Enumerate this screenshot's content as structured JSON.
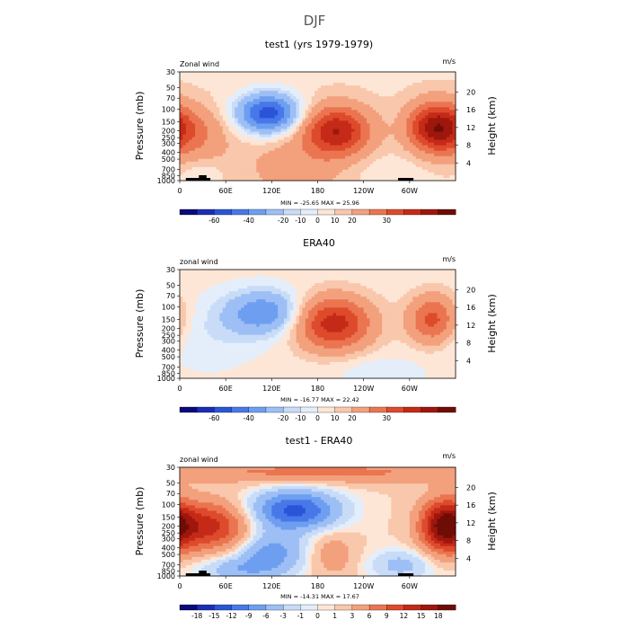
{
  "figure_title": "DJF",
  "panels": [
    {
      "title": "test1 (yrs 1979-1979)",
      "left_label": "Zonal wind",
      "right_label": "m/s",
      "ylabel": "Pressure (mb)",
      "ylabel_right": "Height (km)",
      "minmax": "MIN = -25.65   MAX =  25.96",
      "colorbar_labels": [
        "-60",
        "-40",
        "-20",
        "-10",
        "0",
        "10",
        "20",
        "30"
      ],
      "colorbar_colors": [
        "#0a0a7a",
        "#1a2fb5",
        "#2a55d8",
        "#4878e8",
        "#6e9ef0",
        "#9dbff5",
        "#c8dcf8",
        "#e4eefb",
        "#fde6d6",
        "#f9c7ab",
        "#f3a07d",
        "#ea7550",
        "#dd4a2c",
        "#c42a17",
        "#9e160c",
        "#6e0d06"
      ],
      "colorbar_tick_positions": [
        0.125,
        0.25,
        0.375,
        0.4375,
        0.5,
        0.5625,
        0.625,
        0.75
      ]
    },
    {
      "title": "ERA40",
      "left_label": "zonal wind",
      "right_label": "m/s",
      "ylabel": "Pressure (mb)",
      "ylabel_right": "Height (km)",
      "minmax": "MIN = -16.77   MAX =  22.42",
      "colorbar_labels": [
        "-60",
        "-40",
        "-20",
        "-10",
        "0",
        "10",
        "20",
        "30"
      ],
      "colorbar_colors": [
        "#0a0a7a",
        "#1a2fb5",
        "#2a55d8",
        "#4878e8",
        "#6e9ef0",
        "#9dbff5",
        "#c8dcf8",
        "#e4eefb",
        "#fde6d6",
        "#f9c7ab",
        "#f3a07d",
        "#ea7550",
        "#dd4a2c",
        "#c42a17",
        "#9e160c",
        "#6e0d06"
      ],
      "colorbar_tick_positions": [
        0.125,
        0.25,
        0.375,
        0.4375,
        0.5,
        0.5625,
        0.625,
        0.75
      ]
    },
    {
      "title": "test1 - ERA40",
      "left_label": "zonal wind",
      "right_label": "m/s",
      "ylabel": "Pressure (mb)",
      "ylabel_right": "Height (km)",
      "minmax": "MIN = -14.31   MAX =  17.67",
      "colorbar_labels": [
        "-18",
        "-15",
        "-12",
        "-9",
        "-6",
        "-3",
        "-1",
        "0",
        "1",
        "3",
        "6",
        "9",
        "12",
        "15",
        "18"
      ],
      "colorbar_colors": [
        "#0a0a7a",
        "#1a2fb5",
        "#2a55d8",
        "#4878e8",
        "#6e9ef0",
        "#9dbff5",
        "#c8dcf8",
        "#e4eefb",
        "#fde6d6",
        "#f9c7ab",
        "#f3a07d",
        "#ea7550",
        "#dd4a2c",
        "#c42a17",
        "#9e160c",
        "#6e0d06"
      ],
      "colorbar_tick_positions": [
        0.0625,
        0.125,
        0.1875,
        0.25,
        0.3125,
        0.375,
        0.4375,
        0.5,
        0.5625,
        0.625,
        0.6875,
        0.75,
        0.8125,
        0.875,
        0.9375
      ]
    }
  ],
  "chart_data": [
    {
      "type": "heatmap",
      "title": "test1 (yrs 1979-1979)",
      "xlabel": "",
      "ylabel": "Pressure (mb)",
      "ylabel_right": "Height (km)",
      "x_ticks": [
        "0",
        "60E",
        "120E",
        "180",
        "120W",
        "60W"
      ],
      "x_tick_lon": [
        0,
        60,
        120,
        180,
        240,
        300
      ],
      "xlim": [
        0,
        360
      ],
      "y_ticks": [
        "30",
        "50",
        "70",
        "100",
        "150",
        "200",
        "250",
        "300",
        "400",
        "500",
        "700",
        "850",
        "1000"
      ],
      "y_tick_p": [
        30,
        50,
        70,
        100,
        150,
        200,
        250,
        300,
        400,
        500,
        700,
        850,
        1000
      ],
      "y_ticks_right": [
        "20",
        "16",
        "12",
        "8",
        "4"
      ],
      "y_ticks_right_km": [
        20,
        16,
        12,
        8,
        4
      ],
      "ylim": [
        1000,
        30
      ],
      "min": -25.65,
      "max": 25.96,
      "features": [
        {
          "lon": 115,
          "p": 115,
          "value": -25,
          "sx": 28,
          "sy": 0.45
        },
        {
          "lon": 205,
          "p": 200,
          "value": 22,
          "sx": 30,
          "sy": 0.55
        },
        {
          "lon": 335,
          "p": 180,
          "value": 26,
          "sx": 25,
          "sy": 0.55
        },
        {
          "lon": 20,
          "p": 220,
          "value": 8,
          "sx": 30,
          "sy": 0.6
        },
        {
          "lon": 155,
          "p": 600,
          "value": 5,
          "sx": 55,
          "sy": 0.8
        },
        {
          "lon": 260,
          "p": 700,
          "value": -2,
          "sx": 40,
          "sy": 0.4
        },
        {
          "lon": 30,
          "p": 850,
          "value": -3,
          "sx": 15,
          "sy": 0.3
        }
      ],
      "background": 2
    },
    {
      "type": "heatmap",
      "title": "ERA40",
      "xlabel": "",
      "ylabel": "Pressure (mb)",
      "ylabel_right": "Height (km)",
      "x_ticks": [
        "0",
        "60E",
        "120E",
        "180",
        "120W",
        "60W"
      ],
      "x_tick_lon": [
        0,
        60,
        120,
        180,
        240,
        300
      ],
      "xlim": [
        0,
        360
      ],
      "y_ticks": [
        "30",
        "50",
        "70",
        "100",
        "150",
        "200",
        "250",
        "300",
        "400",
        "500",
        "700",
        "850",
        "1000"
      ],
      "y_tick_p": [
        30,
        50,
        70,
        100,
        150,
        200,
        250,
        300,
        400,
        500,
        700,
        850,
        1000
      ],
      "y_ticks_right": [
        "20",
        "16",
        "12",
        "8",
        "4"
      ],
      "y_ticks_right_km": [
        20,
        16,
        12,
        8,
        4
      ],
      "ylim": [
        1000,
        30
      ],
      "min": -16.77,
      "max": 22.42,
      "features": [
        {
          "lon": 110,
          "p": 120,
          "value": -15,
          "sx": 35,
          "sy": 0.5
        },
        {
          "lon": 200,
          "p": 170,
          "value": 22,
          "sx": 35,
          "sy": 0.6
        },
        {
          "lon": 330,
          "p": 150,
          "value": 16,
          "sx": 22,
          "sy": 0.55
        },
        {
          "lon": 40,
          "p": 250,
          "value": -3,
          "sx": 45,
          "sy": 0.8
        },
        {
          "lon": 260,
          "p": 800,
          "value": -3,
          "sx": 40,
          "sy": 0.35
        }
      ],
      "background": 1
    },
    {
      "type": "heatmap",
      "title": "test1 - ERA40",
      "xlabel": "",
      "ylabel": "Pressure (mb)",
      "ylabel_right": "Height (km)",
      "x_ticks": [
        "0",
        "60E",
        "120E",
        "180",
        "120W",
        "60W"
      ],
      "x_tick_lon": [
        0,
        60,
        120,
        180,
        240,
        300
      ],
      "xlim": [
        0,
        360
      ],
      "y_ticks": [
        "30",
        "50",
        "70",
        "100",
        "150",
        "200",
        "250",
        "300",
        "400",
        "500",
        "700",
        "850",
        "1000"
      ],
      "y_tick_p": [
        30,
        50,
        70,
        100,
        150,
        200,
        250,
        300,
        400,
        500,
        700,
        850,
        1000
      ],
      "y_ticks_right": [
        "20",
        "16",
        "12",
        "8",
        "4"
      ],
      "y_ticks_right_km": [
        20,
        16,
        12,
        8,
        4
      ],
      "ylim": [
        1000,
        30
      ],
      "min": -14.31,
      "max": 17.67,
      "features": [
        {
          "lon": 150,
          "p": 120,
          "value": -14,
          "sx": 40,
          "sy": 0.45
        },
        {
          "lon": 40,
          "p": 200,
          "value": 12,
          "sx": 35,
          "sy": 0.55
        },
        {
          "lon": 345,
          "p": 200,
          "value": 17,
          "sx": 22,
          "sy": 0.6
        },
        {
          "lon": 180,
          "p": 35,
          "value": 6,
          "sx": 160,
          "sy": 0.25
        },
        {
          "lon": 120,
          "p": 450,
          "value": -8,
          "sx": 30,
          "sy": 0.45
        },
        {
          "lon": 80,
          "p": 800,
          "value": -6,
          "sx": 40,
          "sy": 0.3
        },
        {
          "lon": 290,
          "p": 700,
          "value": -5,
          "sx": 30,
          "sy": 0.35
        },
        {
          "lon": 200,
          "p": 500,
          "value": 4,
          "sx": 20,
          "sy": 0.5
        }
      ],
      "background": 1
    }
  ]
}
